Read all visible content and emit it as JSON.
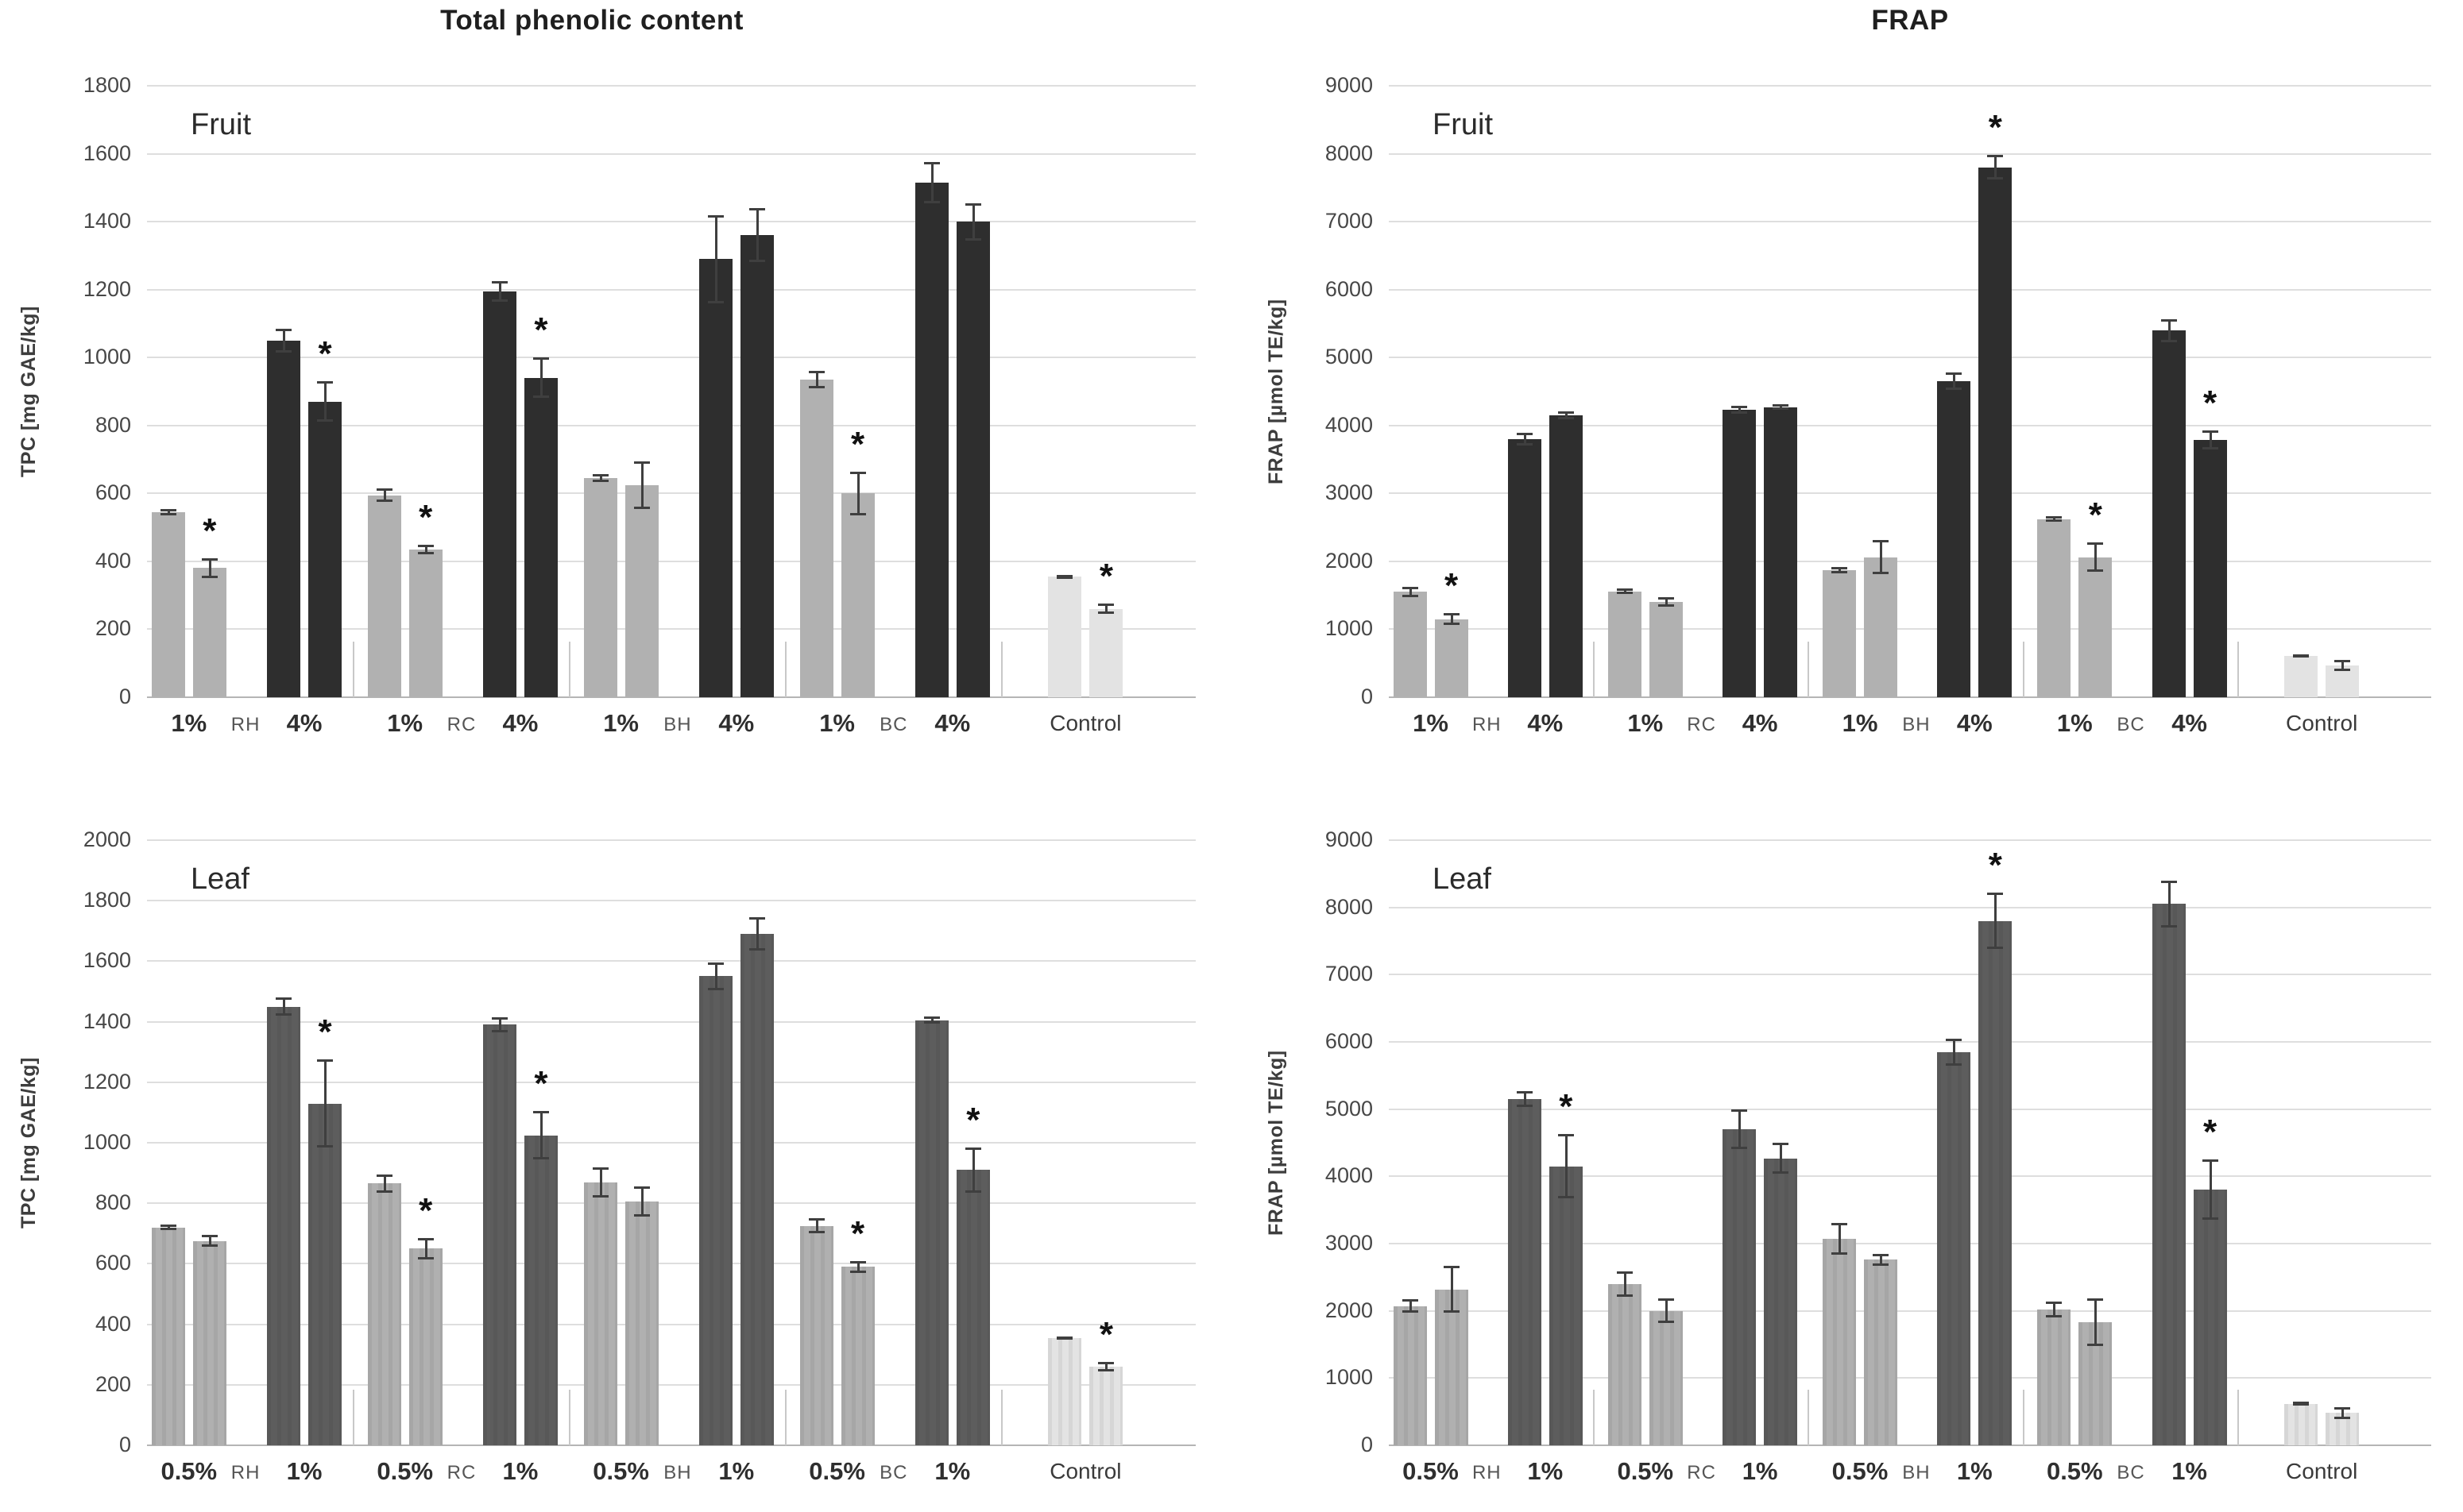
{
  "figure_titles": {
    "left_column": "Total phenolic content",
    "right_column": "FRAP"
  },
  "chart_data": [
    {
      "type": "bar",
      "id": "tpc-fruit",
      "title": "Total phenolic content",
      "corner_label": "Fruit",
      "ylabel": "TPC [mg GAE/kg]",
      "ylim": [
        0,
        1800
      ],
      "ystep": 200,
      "yticks": [
        1800,
        1600,
        1400,
        1200,
        1000,
        800,
        600,
        400,
        200,
        0
      ],
      "grid": true,
      "legend": "none",
      "colors": {
        "low": "#b1b1b1",
        "high": "#2e2e2e",
        "control": "#e3e3e3"
      },
      "textured": false,
      "groups": [
        {
          "species": "RH",
          "low": {
            "label": "1%",
            "bars": [
              {
                "value": 545,
                "err": 10
              },
              {
                "value": 380,
                "err": 30,
                "star": true
              }
            ]
          },
          "high": {
            "label": "4%",
            "bars": [
              {
                "value": 1050,
                "err": 35
              },
              {
                "value": 870,
                "err": 60,
                "star": true
              }
            ]
          }
        },
        {
          "species": "RC",
          "low": {
            "label": "1%",
            "bars": [
              {
                "value": 595,
                "err": 20
              },
              {
                "value": 435,
                "err": 15,
                "star": true
              }
            ]
          },
          "high": {
            "label": "4%",
            "bars": [
              {
                "value": 1195,
                "err": 30
              },
              {
                "value": 940,
                "err": 60,
                "star": true
              }
            ]
          }
        },
        {
          "species": "BH",
          "low": {
            "label": "1%",
            "bars": [
              {
                "value": 645,
                "err": 12
              },
              {
                "value": 625,
                "err": 70
              }
            ]
          },
          "high": {
            "label": "4%",
            "bars": [
              {
                "value": 1290,
                "err": 130
              },
              {
                "value": 1360,
                "err": 80
              }
            ]
          }
        },
        {
          "species": "BC",
          "low": {
            "label": "1%",
            "bars": [
              {
                "value": 935,
                "err": 25
              },
              {
                "value": 600,
                "err": 65,
                "star": true
              }
            ]
          },
          "high": {
            "label": "4%",
            "bars": [
              {
                "value": 1515,
                "err": 60
              },
              {
                "value": 1400,
                "err": 55
              }
            ]
          }
        }
      ],
      "control": {
        "label": "Control",
        "bars": [
          {
            "value": 355,
            "err": 6
          },
          {
            "value": 260,
            "err": 15,
            "star": true
          }
        ]
      }
    },
    {
      "type": "bar",
      "id": "frap-fruit",
      "title": "FRAP",
      "corner_label": "Fruit",
      "ylabel": "FRAP [µmol TE/kg]",
      "ylim": [
        0,
        9000
      ],
      "ystep": 1000,
      "yticks": [
        9000,
        8000,
        7000,
        6000,
        5000,
        4000,
        3000,
        2000,
        1000,
        0
      ],
      "grid": true,
      "legend": "none",
      "colors": {
        "low": "#b1b1b1",
        "high": "#2e2e2e",
        "control": "#e3e3e3"
      },
      "textured": false,
      "groups": [
        {
          "species": "RH",
          "low": {
            "label": "1%",
            "bars": [
              {
                "value": 1550,
                "err": 80
              },
              {
                "value": 1150,
                "err": 90,
                "star": true
              }
            ]
          },
          "high": {
            "label": "4%",
            "bars": [
              {
                "value": 3800,
                "err": 90
              },
              {
                "value": 4150,
                "err": 60
              }
            ]
          }
        },
        {
          "species": "RC",
          "low": {
            "label": "1%",
            "bars": [
              {
                "value": 1560,
                "err": 40
              },
              {
                "value": 1400,
                "err": 70
              }
            ]
          },
          "high": {
            "label": "4%",
            "bars": [
              {
                "value": 4230,
                "err": 60
              },
              {
                "value": 4270,
                "err": 40
              }
            ]
          }
        },
        {
          "species": "BH",
          "low": {
            "label": "1%",
            "bars": [
              {
                "value": 1870,
                "err": 50
              },
              {
                "value": 2060,
                "err": 250
              }
            ]
          },
          "high": {
            "label": "4%",
            "bars": [
              {
                "value": 4650,
                "err": 130
              },
              {
                "value": 7800,
                "err": 180,
                "star": true
              }
            ]
          }
        },
        {
          "species": "BC",
          "low": {
            "label": "1%",
            "bars": [
              {
                "value": 2620,
                "err": 40
              },
              {
                "value": 2060,
                "err": 220,
                "star": true
              }
            ]
          },
          "high": {
            "label": "4%",
            "bars": [
              {
                "value": 5400,
                "err": 170
              },
              {
                "value": 3790,
                "err": 140,
                "star": true
              }
            ]
          }
        }
      ],
      "control": {
        "label": "Control",
        "bars": [
          {
            "value": 610,
            "err": 25
          },
          {
            "value": 470,
            "err": 80
          }
        ]
      }
    },
    {
      "type": "bar",
      "id": "tpc-leaf",
      "title": "",
      "corner_label": "Leaf",
      "ylabel": "TPC [mg GAE/kg]",
      "ylim": [
        0,
        2000
      ],
      "ystep": 200,
      "yticks": [
        2000,
        1800,
        1600,
        1400,
        1200,
        1000,
        800,
        600,
        400,
        200,
        0
      ],
      "grid": true,
      "legend": "none",
      "colors": {
        "low": "#b0b0b0",
        "high": "#5d5d5d",
        "control": "#e3e3e3"
      },
      "textured": true,
      "groups": [
        {
          "species": "RH",
          "low": {
            "label": "0.5%",
            "bars": [
              {
                "value": 720,
                "err": 10
              },
              {
                "value": 675,
                "err": 20
              }
            ]
          },
          "high": {
            "label": "1%",
            "bars": [
              {
                "value": 1450,
                "err": 30
              },
              {
                "value": 1130,
                "err": 145,
                "star": true
              }
            ]
          }
        },
        {
          "species": "RC",
          "low": {
            "label": "0.5%",
            "bars": [
              {
                "value": 865,
                "err": 30
              },
              {
                "value": 650,
                "err": 35,
                "star": true
              }
            ]
          },
          "high": {
            "label": "1%",
            "bars": [
              {
                "value": 1390,
                "err": 25
              },
              {
                "value": 1025,
                "err": 80,
                "star": true
              }
            ]
          }
        },
        {
          "species": "BH",
          "low": {
            "label": "0.5%",
            "bars": [
              {
                "value": 870,
                "err": 50
              },
              {
                "value": 805,
                "err": 50
              }
            ]
          },
          "high": {
            "label": "1%",
            "bars": [
              {
                "value": 1550,
                "err": 45
              },
              {
                "value": 1690,
                "err": 55
              }
            ]
          }
        },
        {
          "species": "BC",
          "low": {
            "label": "0.5%",
            "bars": [
              {
                "value": 725,
                "err": 25
              },
              {
                "value": 590,
                "err": 20,
                "star": true
              }
            ]
          },
          "high": {
            "label": "1%",
            "bars": [
              {
                "value": 1405,
                "err": 12
              },
              {
                "value": 910,
                "err": 75,
                "star": true
              }
            ]
          }
        }
      ],
      "control": {
        "label": "Control",
        "bars": [
          {
            "value": 355,
            "err": 6
          },
          {
            "value": 260,
            "err": 15,
            "star": true
          }
        ]
      }
    },
    {
      "type": "bar",
      "id": "frap-leaf",
      "title": "",
      "corner_label": "Leaf",
      "ylabel": "FRAP [µmol TE/kg]",
      "ylim": [
        0,
        9000
      ],
      "ystep": 1000,
      "yticks": [
        9000,
        8000,
        7000,
        6000,
        5000,
        4000,
        3000,
        2000,
        1000,
        0
      ],
      "grid": true,
      "legend": "none",
      "colors": {
        "low": "#b0b0b0",
        "high": "#5d5d5d",
        "control": "#e3e3e3"
      },
      "textured": true,
      "groups": [
        {
          "species": "RH",
          "low": {
            "label": "0.5%",
            "bars": [
              {
                "value": 2070,
                "err": 100
              },
              {
                "value": 2320,
                "err": 350
              }
            ]
          },
          "high": {
            "label": "1%",
            "bars": [
              {
                "value": 5150,
                "err": 120
              },
              {
                "value": 4150,
                "err": 480,
                "star": true
              }
            ]
          }
        },
        {
          "species": "RC",
          "low": {
            "label": "0.5%",
            "bars": [
              {
                "value": 2400,
                "err": 190
              },
              {
                "value": 2000,
                "err": 180
              }
            ]
          },
          "high": {
            "label": "1%",
            "bars": [
              {
                "value": 4700,
                "err": 300
              },
              {
                "value": 4270,
                "err": 230
              }
            ]
          }
        },
        {
          "species": "BH",
          "low": {
            "label": "0.5%",
            "bars": [
              {
                "value": 3070,
                "err": 240
              },
              {
                "value": 2760,
                "err": 90
              }
            ]
          },
          "high": {
            "label": "1%",
            "bars": [
              {
                "value": 5850,
                "err": 200
              },
              {
                "value": 7800,
                "err": 420,
                "star": true
              }
            ]
          }
        },
        {
          "species": "BC",
          "low": {
            "label": "0.5%",
            "bars": [
              {
                "value": 2020,
                "err": 120
              },
              {
                "value": 1830,
                "err": 350
              }
            ]
          },
          "high": {
            "label": "1%",
            "bars": [
              {
                "value": 8050,
                "err": 350
              },
              {
                "value": 3800,
                "err": 450,
                "star": true
              }
            ]
          }
        }
      ],
      "control": {
        "label": "Control",
        "bars": [
          {
            "value": 620,
            "err": 30
          },
          {
            "value": 480,
            "err": 90
          }
        ]
      }
    }
  ],
  "annotations": {
    "significance_marker": "*"
  }
}
